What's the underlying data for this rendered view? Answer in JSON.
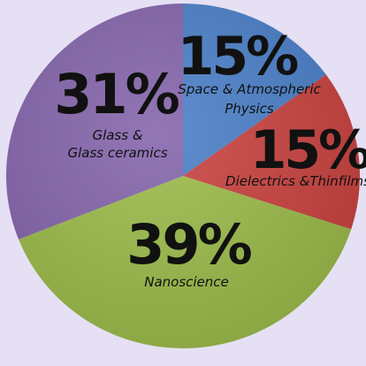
{
  "chart_data": {
    "type": "pie",
    "title": "",
    "slices": [
      {
        "label_lines": [
          "Space & Atmospheric",
          "Physics"
        ],
        "value": 15,
        "percent_label": "15%",
        "color": "#4a7fc8"
      },
      {
        "label_lines": [
          "Dielectrics &Thinfilms"
        ],
        "value": 15,
        "percent_label": "15%",
        "color": "#c9423f"
      },
      {
        "label_lines": [
          "Nanoscience"
        ],
        "value": 39,
        "percent_label": "39%",
        "color": "#9bbb49"
      },
      {
        "label_lines": [
          "Glass &",
          "Glass ceramics"
        ],
        "value": 31,
        "percent_label": "31%",
        "color": "#8464ab"
      }
    ],
    "legend": "none"
  }
}
